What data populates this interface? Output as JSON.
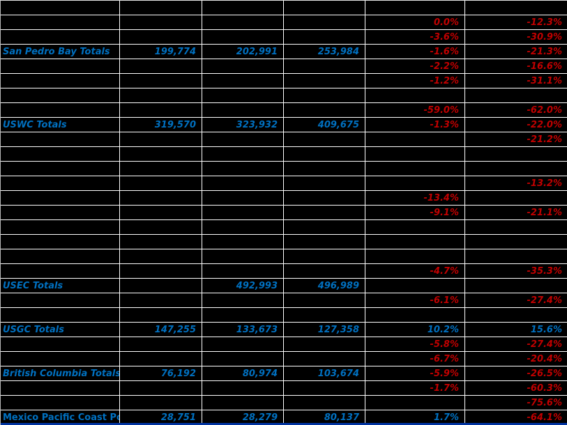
{
  "colors": {
    "text_blue": "#0070C0",
    "text_red": "#C00000",
    "gridline": "#FFFFFF",
    "cell_bg": "#000000",
    "bottom_border": "#0033A0"
  },
  "table": {
    "rows": [
      {
        "cells": [
          null,
          null,
          null,
          null,
          null,
          null
        ]
      },
      {
        "cells": [
          null,
          null,
          null,
          null,
          {
            "t": "0.0%",
            "c": "red"
          },
          {
            "t": "-12.3%",
            "c": "red"
          }
        ]
      },
      {
        "cells": [
          null,
          null,
          null,
          null,
          {
            "t": "-3.6%",
            "c": "red"
          },
          {
            "t": "-30.9%",
            "c": "red"
          }
        ]
      },
      {
        "cells": [
          {
            "t": "San Pedro Bay Totals",
            "c": "blue",
            "a": "l"
          },
          {
            "t": "199,774",
            "c": "blue"
          },
          {
            "t": "202,991",
            "c": "blue"
          },
          {
            "t": "253,984",
            "c": "blue"
          },
          {
            "t": "-1.6%",
            "c": "red"
          },
          {
            "t": "-21.3%",
            "c": "red"
          }
        ]
      },
      {
        "cells": [
          null,
          null,
          null,
          null,
          {
            "t": "-2.2%",
            "c": "red"
          },
          {
            "t": "-16.6%",
            "c": "red"
          }
        ]
      },
      {
        "cells": [
          null,
          null,
          null,
          null,
          {
            "t": "-1.2%",
            "c": "red"
          },
          {
            "t": "-31.1%",
            "c": "red"
          }
        ]
      },
      {
        "cells": [
          null,
          null,
          null,
          null,
          null,
          null
        ]
      },
      {
        "cells": [
          null,
          null,
          null,
          null,
          {
            "t": "-59.0%",
            "c": "red"
          },
          {
            "t": "-62.0%",
            "c": "red"
          }
        ]
      },
      {
        "cells": [
          {
            "t": "USWC Totals",
            "c": "blue",
            "a": "l"
          },
          {
            "t": "319,570",
            "c": "blue"
          },
          {
            "t": "323,932",
            "c": "blue"
          },
          {
            "t": "409,675",
            "c": "blue"
          },
          {
            "t": "-1.3%",
            "c": "red"
          },
          {
            "t": "-22.0%",
            "c": "red"
          }
        ]
      },
      {
        "cells": [
          null,
          null,
          null,
          null,
          null,
          {
            "t": "-21.2%",
            "c": "red"
          }
        ]
      },
      {
        "cells": [
          null,
          null,
          null,
          null,
          null,
          null
        ]
      },
      {
        "cells": [
          null,
          null,
          null,
          null,
          null,
          null
        ]
      },
      {
        "cells": [
          null,
          null,
          null,
          null,
          null,
          {
            "t": "-13.2%",
            "c": "red"
          }
        ]
      },
      {
        "cells": [
          null,
          null,
          null,
          null,
          {
            "t": "-13.4%",
            "c": "red"
          },
          null
        ]
      },
      {
        "cells": [
          null,
          null,
          null,
          null,
          {
            "t": "-9.1%",
            "c": "red"
          },
          {
            "t": "-21.1%",
            "c": "red"
          }
        ]
      },
      {
        "cells": [
          null,
          null,
          null,
          null,
          null,
          null
        ]
      },
      {
        "cells": [
          null,
          null,
          null,
          null,
          null,
          null
        ]
      },
      {
        "cells": [
          null,
          null,
          null,
          null,
          null,
          null
        ]
      },
      {
        "cells": [
          null,
          null,
          null,
          null,
          {
            "t": "-4.7%",
            "c": "red"
          },
          {
            "t": "-35.3%",
            "c": "red"
          }
        ]
      },
      {
        "cells": [
          {
            "t": "USEC Totals",
            "c": "blue",
            "a": "l"
          },
          null,
          {
            "t": "492,993",
            "c": "blue"
          },
          {
            "t": "496,989",
            "c": "blue"
          },
          null,
          null
        ]
      },
      {
        "cells": [
          null,
          null,
          null,
          null,
          {
            "t": "-6.1%",
            "c": "red"
          },
          {
            "t": "-27.4%",
            "c": "red"
          }
        ]
      },
      {
        "cells": [
          null,
          null,
          null,
          null,
          null,
          null
        ]
      },
      {
        "cells": [
          {
            "t": "USGC Totals",
            "c": "blue",
            "a": "l"
          },
          {
            "t": "147,255",
            "c": "blue"
          },
          {
            "t": "133,673",
            "c": "blue"
          },
          {
            "t": "127,358",
            "c": "blue"
          },
          {
            "t": "10.2%",
            "c": "blue"
          },
          {
            "t": "15.6%",
            "c": "blue"
          }
        ]
      },
      {
        "cells": [
          null,
          null,
          null,
          null,
          {
            "t": "-5.8%",
            "c": "red"
          },
          {
            "t": "-27.4%",
            "c": "red"
          }
        ]
      },
      {
        "cells": [
          null,
          null,
          null,
          null,
          {
            "t": "-6.7%",
            "c": "red"
          },
          {
            "t": "-20.4%",
            "c": "red"
          }
        ]
      },
      {
        "cells": [
          {
            "t": "British Columbia Totals",
            "c": "blue",
            "a": "l"
          },
          {
            "t": "76,192",
            "c": "blue"
          },
          {
            "t": "80,974",
            "c": "blue"
          },
          {
            "t": "103,674",
            "c": "blue"
          },
          {
            "t": "-5.9%",
            "c": "red"
          },
          {
            "t": "-26.5%",
            "c": "red"
          }
        ]
      },
      {
        "cells": [
          null,
          null,
          null,
          null,
          {
            "t": "-1.7%",
            "c": "red"
          },
          {
            "t": "-60.3%",
            "c": "red"
          }
        ]
      },
      {
        "cells": [
          null,
          null,
          null,
          null,
          null,
          {
            "t": "-75.6%",
            "c": "red"
          }
        ]
      },
      {
        "cells": [
          {
            "t": "Mexico Pacific Coast Por",
            "c": "blue",
            "a": "l",
            "i": false
          },
          {
            "t": "28,751",
            "c": "blue"
          },
          {
            "t": "28,279",
            "c": "blue"
          },
          {
            "t": "80,137",
            "c": "blue"
          },
          {
            "t": "1.7%",
            "c": "blue"
          },
          {
            "t": "-64.1%",
            "c": "red"
          }
        ]
      }
    ]
  }
}
